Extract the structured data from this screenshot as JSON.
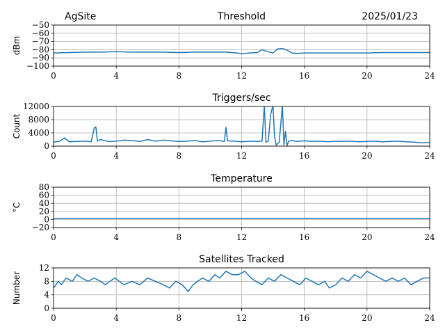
{
  "header": {
    "site": "AgSite",
    "date": "2025/01/23"
  },
  "chart_data": [
    {
      "type": "line",
      "title": "Threshold",
      "ylabel": "dBm",
      "xlabel": "",
      "xlim": [
        0,
        24
      ],
      "ylim": [
        -100,
        -50
      ],
      "xticks": [
        0,
        4,
        8,
        12,
        16,
        20,
        24
      ],
      "yticks": [
        -100,
        -90,
        -80,
        -70,
        -60,
        -50
      ],
      "ytick_labels": [
        "−100",
        "−90",
        "−80",
        "−70",
        "−60",
        "−50"
      ],
      "grid": true,
      "color": "#1f77b4",
      "x": [
        0,
        1,
        2,
        3,
        4,
        5,
        6,
        7,
        8,
        9,
        10,
        11,
        11.7,
        12,
        12.5,
        13,
        13.3,
        13.6,
        14,
        14.3,
        14.6,
        14.9,
        15.2,
        15.6,
        16,
        17,
        18,
        19,
        20,
        21,
        22,
        23,
        24
      ],
      "values": [
        -84,
        -83.5,
        -83,
        -83,
        -82.5,
        -83,
        -83,
        -83,
        -83.5,
        -83,
        -83,
        -83,
        -84,
        -85,
        -84,
        -83.5,
        -80,
        -82,
        -84,
        -79,
        -78.5,
        -80.5,
        -84,
        -84.5,
        -84,
        -84,
        -84,
        -84,
        -84,
        -83.5,
        -83.5,
        -83.5,
        -83.5
      ]
    },
    {
      "type": "line",
      "title": "Triggers/sec",
      "ylabel": "Count",
      "xlabel": "",
      "xlim": [
        0,
        24
      ],
      "ylim": [
        0,
        12000
      ],
      "xticks": [
        0,
        4,
        8,
        12,
        16,
        20,
        24
      ],
      "yticks": [
        0,
        4000,
        8000,
        12000
      ],
      "ytick_labels": [
        "0",
        "4000",
        "8000",
        "12000"
      ],
      "grid": true,
      "color": "#1f77b4",
      "x": [
        0,
        0.4,
        0.7,
        1,
        1.5,
        2,
        2.4,
        2.6,
        2.7,
        2.8,
        3,
        3.5,
        4,
        4.5,
        5,
        5.5,
        6,
        6.5,
        7,
        7.5,
        8,
        8.5,
        9,
        9.5,
        10,
        10.5,
        10.9,
        11,
        11.1,
        11.5,
        12,
        12.5,
        13,
        13.3,
        13.45,
        13.55,
        13.7,
        13.85,
        14,
        14.1,
        14.2,
        14.4,
        14.6,
        14.7,
        14.8,
        14.9,
        15,
        15.2,
        15.5,
        16,
        16.5,
        17,
        17.5,
        18,
        18.5,
        19,
        19.5,
        20,
        20.5,
        21,
        21.5,
        22,
        22.5,
        23,
        23.5,
        24
      ],
      "values": [
        1200,
        1500,
        2500,
        1300,
        1400,
        1500,
        1300,
        5500,
        5800,
        1500,
        2000,
        1400,
        1500,
        1800,
        1700,
        1400,
        2000,
        1500,
        1800,
        1600,
        1400,
        1500,
        1700,
        1300,
        1500,
        1700,
        1400,
        5700,
        1600,
        1500,
        1300,
        1500,
        1400,
        1500,
        12500,
        1200,
        1500,
        9500,
        12500,
        3000,
        300,
        1200,
        12500,
        400,
        4500,
        200,
        1500,
        1700,
        1400,
        1600,
        1400,
        1500,
        1300,
        1500,
        1400,
        1500,
        1300,
        1400,
        1500,
        1300,
        1400,
        1500,
        1300,
        1200,
        1000,
        1100
      ]
    },
    {
      "type": "line",
      "title": "Temperature",
      "ylabel": "°C",
      "xlabel": "",
      "xlim": [
        0,
        24
      ],
      "ylim": [
        -20,
        80
      ],
      "xticks": [
        0,
        4,
        8,
        12,
        16,
        20,
        24
      ],
      "yticks": [
        -20,
        0,
        20,
        40,
        60,
        80
      ],
      "ytick_labels": [
        "−20",
        "0",
        "20",
        "40",
        "60",
        "80"
      ],
      "grid": true,
      "color": "#1f77b4",
      "x": [
        0,
        24
      ],
      "values": [
        3,
        3
      ]
    },
    {
      "type": "line",
      "title": "Satellites Tracked",
      "ylabel": "Number",
      "xlabel": "",
      "xlim": [
        0,
        24
      ],
      "ylim": [
        0,
        12
      ],
      "xticks": [
        0,
        4,
        8,
        12,
        16,
        20,
        24
      ],
      "yticks": [
        0,
        4,
        8,
        12
      ],
      "ytick_labels": [
        "0",
        "4",
        "8",
        "12"
      ],
      "grid": true,
      "color": "#1f77b4",
      "x": [
        0,
        0.3,
        0.5,
        0.8,
        1.2,
        1.5,
        1.8,
        2.2,
        2.6,
        3,
        3.3,
        3.6,
        3.9,
        4.2,
        4.5,
        5,
        5.5,
        6,
        6.5,
        7,
        7.4,
        7.8,
        8.2,
        8.6,
        8.9,
        9.2,
        9.5,
        9.9,
        10.3,
        10.6,
        11,
        11.4,
        11.8,
        12.2,
        12.6,
        12.9,
        13.3,
        13.7,
        14.1,
        14.5,
        14.9,
        15.3,
        15.7,
        16.1,
        16.5,
        16.9,
        17.3,
        17.6,
        18,
        18.4,
        18.8,
        19.2,
        19.6,
        20,
        20.4,
        20.8,
        21.2,
        21.6,
        22,
        22.4,
        22.8,
        23.2,
        23.6,
        24
      ],
      "values": [
        6,
        8,
        7,
        9,
        8,
        10,
        9,
        8,
        9,
        8,
        7,
        8,
        9,
        8,
        7,
        8,
        7,
        9,
        8,
        7,
        6,
        8,
        7,
        5,
        7,
        8,
        9,
        8,
        10,
        9,
        11,
        10,
        10,
        11,
        9,
        8,
        7,
        9,
        8,
        10,
        9,
        8,
        7,
        9,
        8,
        7,
        8,
        6,
        7,
        9,
        8,
        10,
        9,
        11,
        10,
        9,
        8,
        9,
        8,
        9,
        7,
        8,
        9,
        9
      ]
    }
  ]
}
